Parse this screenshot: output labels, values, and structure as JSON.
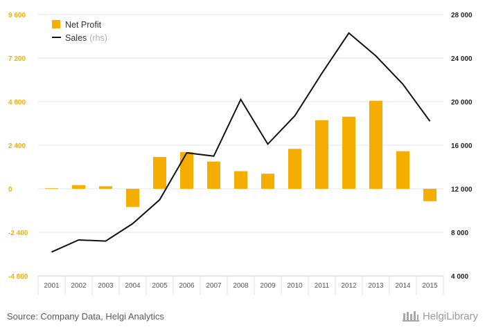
{
  "chart_data": {
    "type": "bar+line",
    "categories": [
      "2001",
      "2002",
      "2003",
      "2004",
      "2005",
      "2006",
      "2007",
      "2008",
      "2009",
      "2010",
      "2011",
      "2012",
      "2013",
      "2014",
      "2015"
    ],
    "series": [
      {
        "name": "Net Profit",
        "type": "bar",
        "axis": "left",
        "color": "#f5ae00",
        "values": [
          30,
          200,
          140,
          -1000,
          1750,
          2020,
          1500,
          970,
          830,
          2200,
          3780,
          3970,
          4850,
          2070,
          -680
        ]
      },
      {
        "name": "Sales",
        "axis_note": "(rhs)",
        "type": "line",
        "axis": "right",
        "color": "#111111",
        "values": [
          6200,
          7300,
          7200,
          8800,
          11000,
          15300,
          15000,
          20200,
          16100,
          18700,
          22600,
          26300,
          24200,
          21600,
          18200
        ]
      }
    ],
    "y_left": {
      "min": -4800,
      "max": 9600,
      "ticks": [
        -4800,
        -2400,
        0,
        2400,
        4800,
        7200,
        9600
      ],
      "tick_labels": [
        "-4 800",
        "-2 400",
        "0",
        "2 400",
        "4 800",
        "7 200",
        "9 600"
      ],
      "color": "#f5ae00"
    },
    "y_right": {
      "min": 4000,
      "max": 28000,
      "ticks": [
        4000,
        8000,
        12000,
        16000,
        20000,
        24000,
        28000
      ],
      "tick_labels": [
        "4 000",
        "8 000",
        "12 000",
        "16 000",
        "20 000",
        "24 000",
        "28 000"
      ],
      "color": "#222222"
    },
    "grid": true,
    "legend": "top-left"
  },
  "footer": {
    "source": "Source: Company Data, Helgi Analytics",
    "brand": "HelgiLibrary"
  }
}
